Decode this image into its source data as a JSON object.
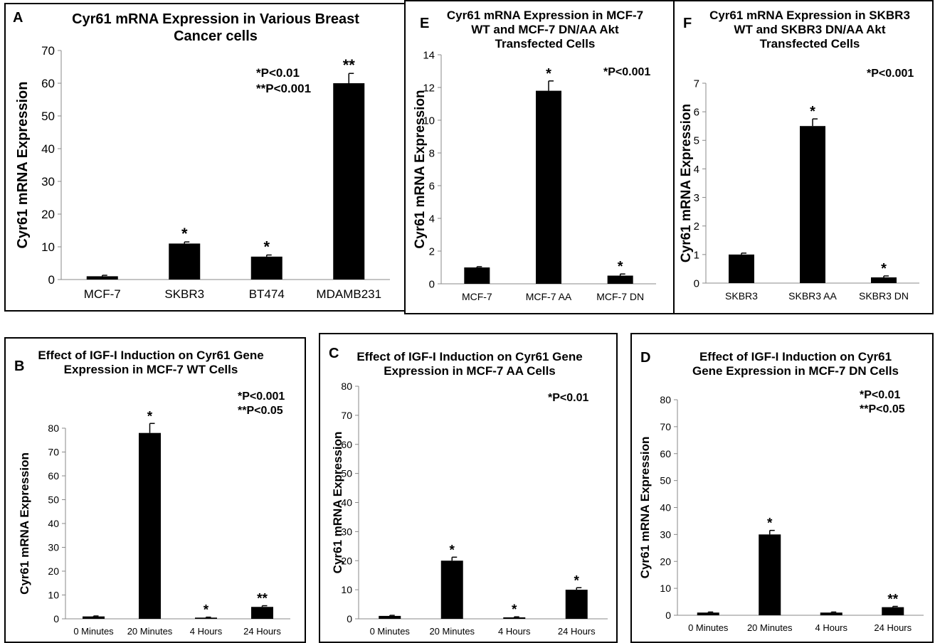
{
  "chart_data": [
    {
      "id": "A",
      "type": "bar",
      "letter": "A",
      "title": "Cyr61 mRNA Expression  in Various Breast Cancer cells",
      "ylabel": "Cyr61 mRNA Expression",
      "notes": "*P<0.01\n**P<0.001",
      "categories": [
        "MCF-7",
        "SKBR3",
        "BT474",
        "MDAMB231"
      ],
      "values": [
        1,
        11,
        7,
        60
      ],
      "errors": [
        0.3,
        0.5,
        0.5,
        3
      ],
      "marks": [
        "",
        "*",
        "*",
        "**"
      ],
      "ylim": [
        0,
        70
      ],
      "yticks": [
        0,
        10,
        20,
        30,
        40,
        50,
        60,
        70
      ]
    },
    {
      "id": "E",
      "type": "bar",
      "letter": "E",
      "title": "Cyr61 mRNA Expression in MCF-7 WT and MCF-7 DN/AA Akt Transfected Cells",
      "ylabel": "Cyr61 mRNA Expression",
      "notes": "*P<0.001",
      "categories": [
        "MCF-7",
        "MCF-7 AA",
        "MCF-7 DN"
      ],
      "values": [
        1,
        11.8,
        0.5
      ],
      "errors": [
        0.05,
        0.6,
        0.1
      ],
      "marks": [
        "",
        "*",
        "*"
      ],
      "ylim": [
        0,
        14
      ],
      "yticks": [
        0,
        2,
        4,
        6,
        8,
        10,
        12,
        14
      ]
    },
    {
      "id": "F",
      "type": "bar",
      "letter": "F",
      "title": "Cyr61 mRNA Expression in SKBR3 WT and SKBR3 DN/AA Akt Transfected Cells",
      "ylabel": "Cyr61 mRNA Expression",
      "notes": "*P<0.001",
      "categories": [
        "SKBR3",
        "SKBR3 AA",
        "SKBR3 DN"
      ],
      "values": [
        1,
        5.5,
        0.2
      ],
      "errors": [
        0.05,
        0.25,
        0.05
      ],
      "marks": [
        "",
        "*",
        "*"
      ],
      "ylim": [
        0,
        7
      ],
      "yticks": [
        0,
        1,
        2,
        3,
        4,
        5,
        6,
        7
      ]
    },
    {
      "id": "B",
      "type": "bar",
      "letter": "B",
      "title": "Effect of IGF-I Induction on Cyr61 Gene Expression in MCF-7 WT Cells",
      "ylabel": "Cyr61 mRNA Expression",
      "notes": "*P<0.001\n**P<0.05",
      "categories": [
        "0 Minutes",
        "20 Minutes",
        "4 Hours",
        "24 Hours"
      ],
      "values": [
        1,
        78,
        0.5,
        5
      ],
      "errors": [
        0.2,
        4,
        0.2,
        0.5
      ],
      "marks": [
        "",
        "*",
        "*",
        "**"
      ],
      "ylim": [
        0,
        80
      ],
      "yticks": [
        0,
        10,
        20,
        30,
        40,
        50,
        60,
        70,
        80
      ]
    },
    {
      "id": "C",
      "type": "bar",
      "letter": "C",
      "title": "Effect of IGF-I Induction on Cyr61 Gene Expression in MCF-7 AA Cells",
      "ylabel": "Cyr61 mRNA Expression",
      "notes": "*P<0.01",
      "categories": [
        "0 Minutes",
        "20 Minutes",
        "4 Hours",
        "24 Hours"
      ],
      "values": [
        1,
        20,
        0.5,
        10
      ],
      "errors": [
        0.2,
        1.2,
        0.2,
        0.7
      ],
      "marks": [
        "",
        "*",
        "*",
        "*"
      ],
      "ylim": [
        0,
        80
      ],
      "yticks": [
        0,
        10,
        20,
        30,
        40,
        50,
        60,
        70,
        80
      ]
    },
    {
      "id": "D",
      "type": "bar",
      "letter": "D",
      "title": "Effect of IGF-I Induction on Cyr61 Gene Expression in MCF-7 DN Cells",
      "ylabel": "Cyr61 mRNA Expression",
      "notes": "*P<0.01\n**P<0.05",
      "categories": [
        "0 Minutes",
        "20 Minutes",
        "4 Hours",
        "24 Hours"
      ],
      "values": [
        1,
        30,
        1,
        3
      ],
      "errors": [
        0.2,
        1.5,
        0.2,
        0.3
      ],
      "marks": [
        "",
        "*",
        "",
        "**"
      ],
      "ylim": [
        0,
        80
      ],
      "yticks": [
        0,
        10,
        20,
        30,
        40,
        50,
        60,
        70,
        80
      ]
    }
  ]
}
